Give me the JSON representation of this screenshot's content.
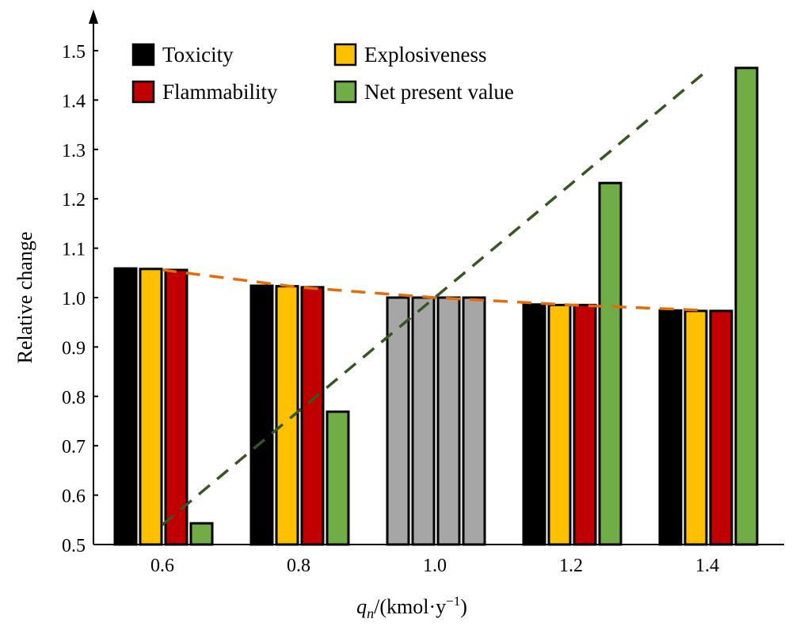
{
  "chart_data": {
    "type": "bar",
    "xlabel_main": "q",
    "xlabel_sub": "n",
    "xlabel_rest": "/(kmol·y",
    "xlabel_sup": "−1",
    "xlabel_close": ")",
    "ylabel": "Relative change",
    "ylim": [
      0.5,
      1.55
    ],
    "yticks": [
      "0.5",
      "0.6",
      "0.7",
      "0.8",
      "0.9",
      "1.0",
      "1.1",
      "1.2",
      "1.3",
      "1.4",
      "1.5"
    ],
    "categories": [
      "0.6",
      "0.8",
      "1.0",
      "1.2",
      "1.4"
    ],
    "series": [
      {
        "name": "Toxicity",
        "color": "#000000",
        "values": [
          1.059,
          1.024,
          1.0,
          0.986,
          0.974
        ]
      },
      {
        "name": "Explosiveness",
        "color": "#ffc000",
        "values": [
          1.058,
          1.023,
          1.0,
          0.985,
          0.973
        ]
      },
      {
        "name": "Flammability",
        "color": "#c00000",
        "values": [
          1.056,
          1.021,
          1.0,
          0.985,
          0.973
        ]
      },
      {
        "name": "Net present value",
        "color": "#70ad47",
        "values": [
          0.543,
          0.769,
          1.0,
          1.232,
          1.465
        ]
      }
    ],
    "baseline_category": "1.0",
    "baseline_color": "#a6a6a6",
    "trendlines": [
      {
        "style": "dashed",
        "color": "#e46c0a",
        "values": [
          1.056,
          1.021,
          1.0,
          0.985,
          0.974
        ]
      },
      {
        "style": "dashed",
        "color": "#375623",
        "values": [
          0.54,
          0.77,
          1.0,
          1.23,
          1.46
        ]
      }
    ],
    "legend_placement": "top-left",
    "grid": false
  }
}
